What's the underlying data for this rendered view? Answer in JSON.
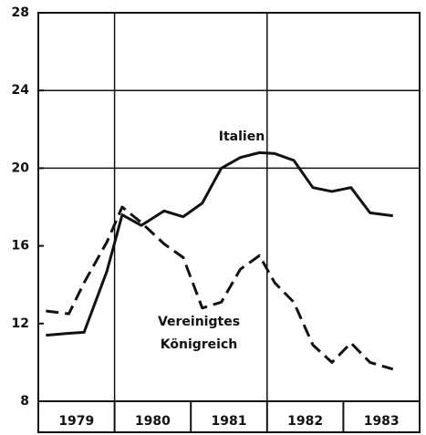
{
  "chart_data": {
    "type": "line",
    "categories": [
      "1979",
      "1980",
      "1981",
      "1982",
      "1983"
    ],
    "x": [
      1979.1,
      1979.4,
      1979.6,
      1979.9,
      1980.1,
      1980.35,
      1980.65,
      1980.9,
      1981.15,
      1981.4,
      1981.65,
      1981.9,
      1982.1,
      1982.35,
      1982.6,
      1982.85,
      1983.1,
      1983.35,
      1983.65
    ],
    "series": [
      {
        "name": "Italien",
        "color": "#111111",
        "dash": "solid",
        "values": [
          11.4,
          11.5,
          11.55,
          14.7,
          17.6,
          17.05,
          17.8,
          17.5,
          18.2,
          20.0,
          20.55,
          20.8,
          20.75,
          20.4,
          19.0,
          18.8,
          19.0,
          17.7,
          17.55
        ]
      },
      {
        "name": "Vereinigtes Königreich",
        "color": "#111111",
        "dash": "dashed",
        "values": [
          12.65,
          12.5,
          14.1,
          16.2,
          18.0,
          17.2,
          16.1,
          15.4,
          12.8,
          13.1,
          14.8,
          15.5,
          14.1,
          13.1,
          10.9,
          10.0,
          11.0,
          10.0,
          9.65
        ]
      }
    ],
    "xlim": [
      1979,
      1984
    ],
    "ylim": [
      8,
      28
    ],
    "yticks": [
      8,
      12,
      16,
      20,
      24,
      28
    ],
    "grid_yticks": [
      20,
      24
    ],
    "grid_x": [
      1980,
      1982
    ]
  }
}
